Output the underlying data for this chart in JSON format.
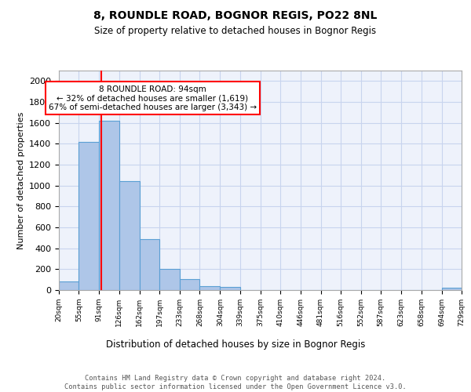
{
  "title_line1": "8, ROUNDLE ROAD, BOGNOR REGIS, PO22 8NL",
  "title_line2": "Size of property relative to detached houses in Bognor Regis",
  "xlabel": "Distribution of detached houses by size in Bognor Regis",
  "ylabel": "Number of detached properties",
  "bin_edges": [
    20,
    55,
    91,
    126,
    162,
    197,
    233,
    268,
    304,
    339,
    375,
    410,
    446,
    481,
    516,
    552,
    587,
    623,
    658,
    694,
    729
  ],
  "bin_labels": [
    "20sqm",
    "55sqm",
    "91sqm",
    "126sqm",
    "162sqm",
    "197sqm",
    "233sqm",
    "268sqm",
    "304sqm",
    "339sqm",
    "375sqm",
    "410sqm",
    "446sqm",
    "481sqm",
    "516sqm",
    "552sqm",
    "587sqm",
    "623sqm",
    "658sqm",
    "694sqm",
    "729sqm"
  ],
  "counts": [
    80,
    1420,
    1620,
    1045,
    490,
    200,
    105,
    35,
    30,
    0,
    0,
    0,
    0,
    0,
    0,
    0,
    0,
    0,
    0,
    20
  ],
  "bar_color": "#aec6e8",
  "bar_edge_color": "#5a9fd4",
  "red_line_x": 94,
  "annotation_text": "8 ROUNDLE ROAD: 94sqm\n← 32% of detached houses are smaller (1,619)\n67% of semi-detached houses are larger (3,343) →",
  "annotation_box_color": "white",
  "annotation_box_edge_color": "red",
  "ylim": [
    0,
    2100
  ],
  "yticks": [
    0,
    200,
    400,
    600,
    800,
    1000,
    1200,
    1400,
    1600,
    1800,
    2000
  ],
  "footer_text": "Contains HM Land Registry data © Crown copyright and database right 2024.\nContains public sector information licensed under the Open Government Licence v3.0.",
  "bg_color": "#eef2fb",
  "grid_color": "#c8d4ee"
}
